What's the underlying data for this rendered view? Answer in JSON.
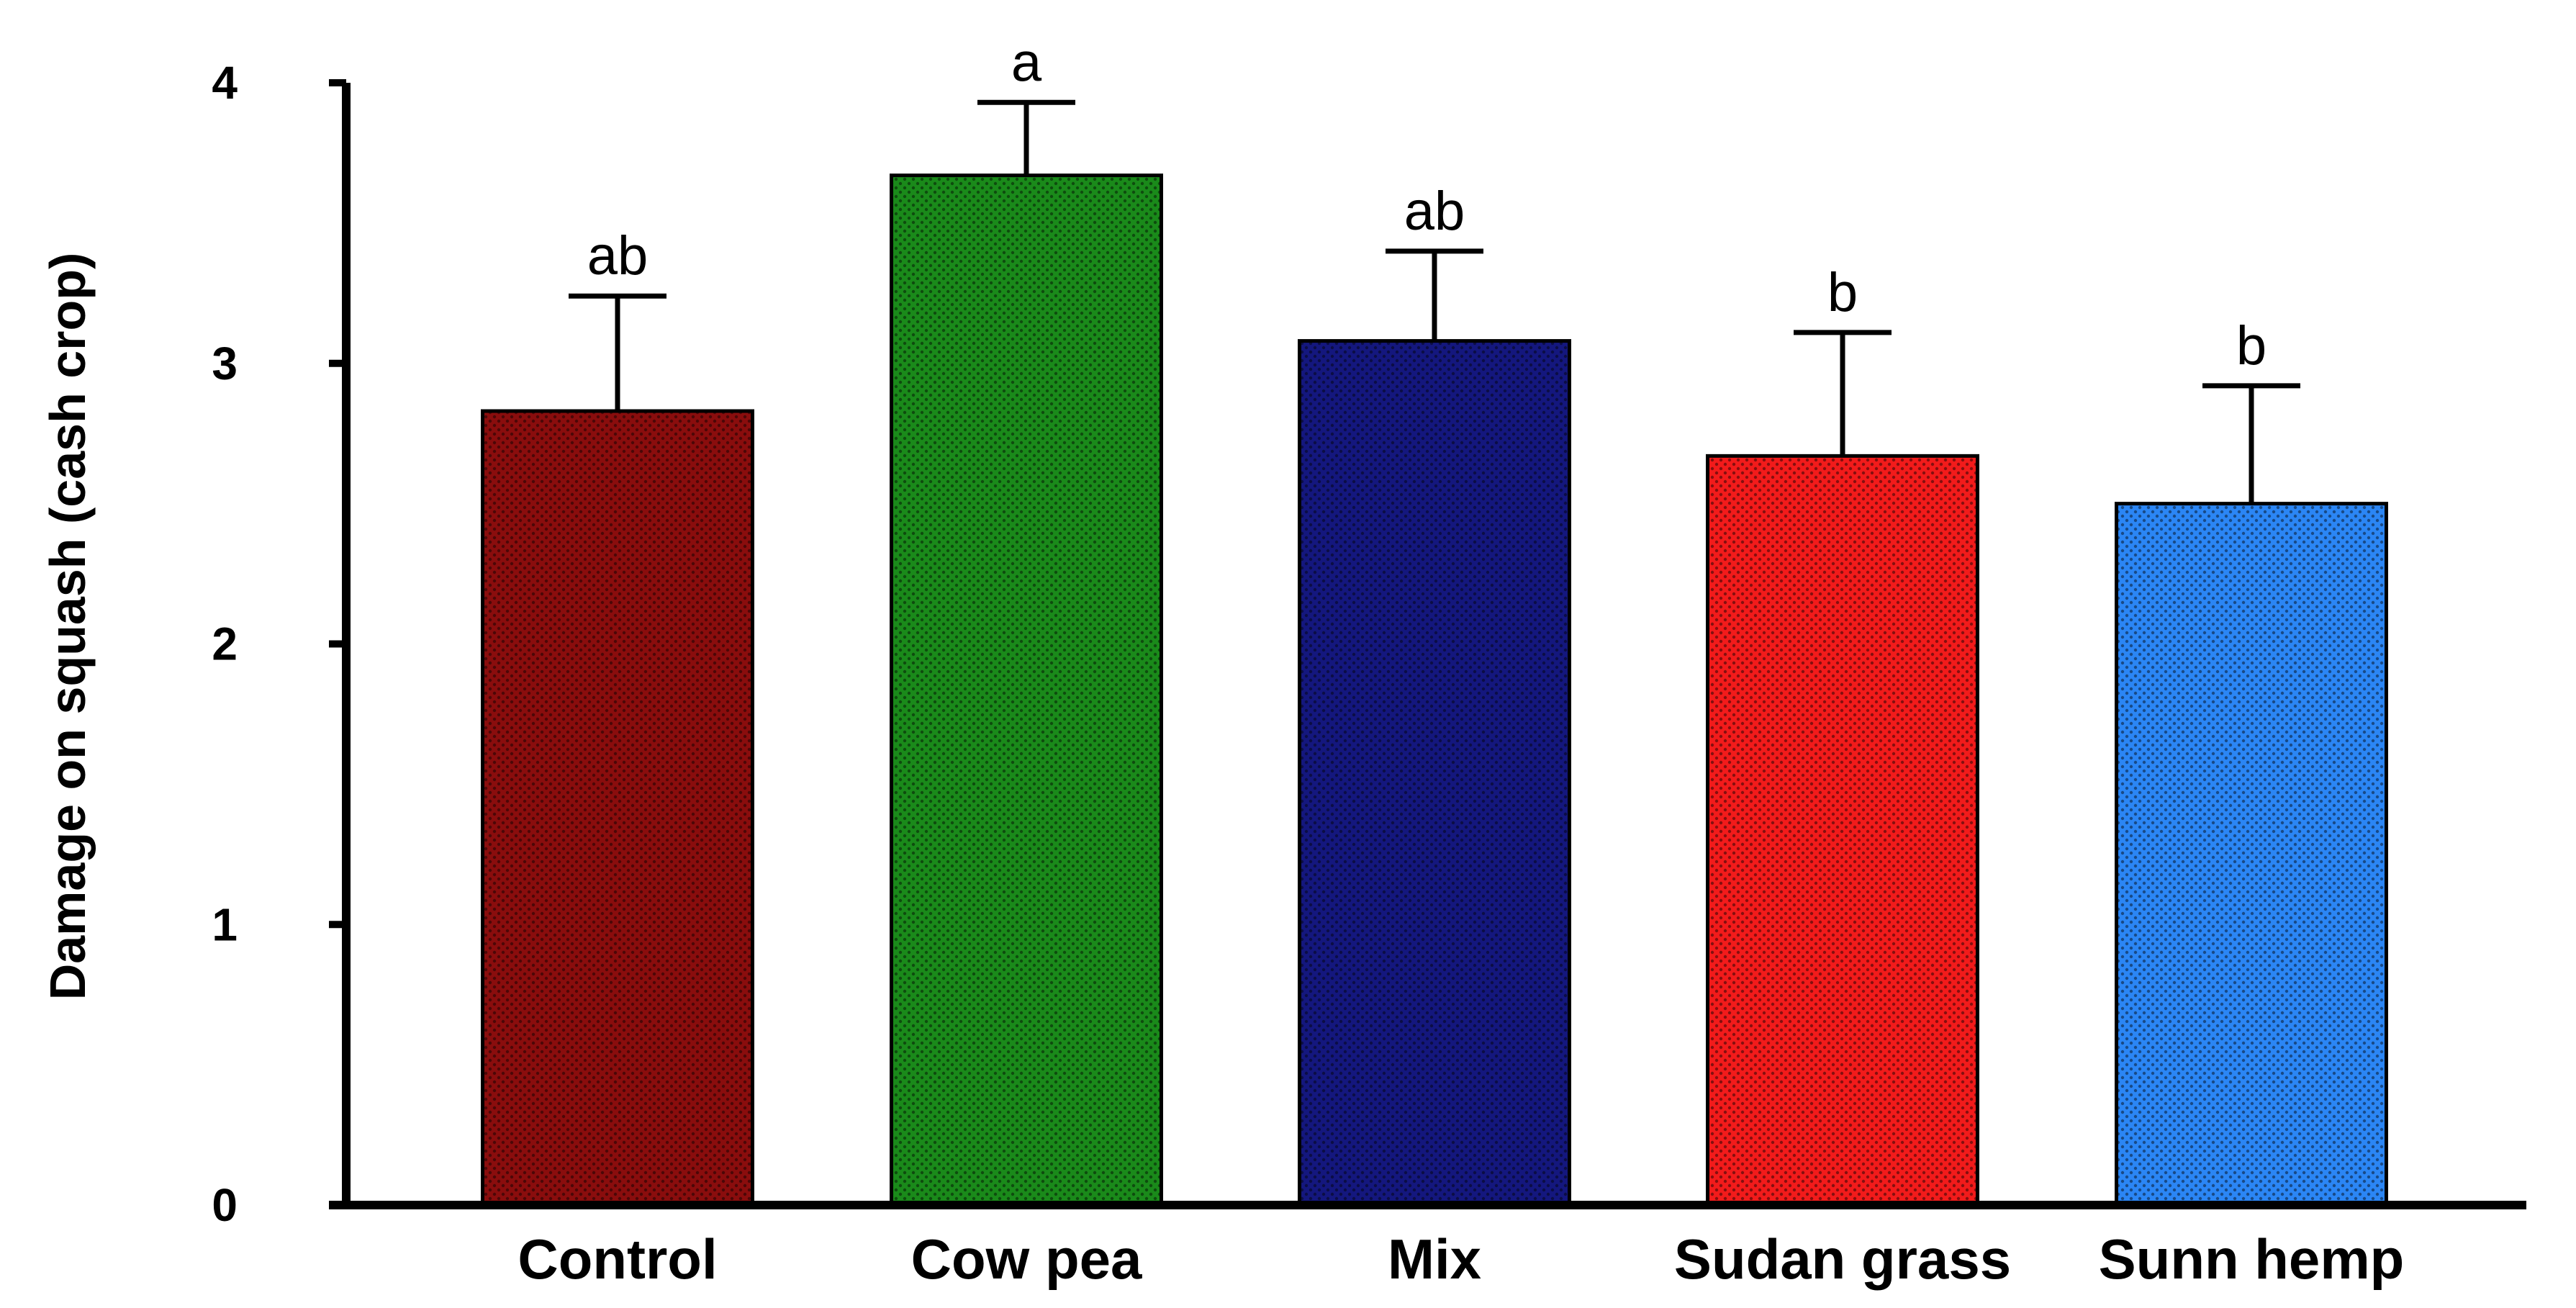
{
  "chart_data": {
    "type": "bar",
    "ylabel": "Damage on squash (cash crop)",
    "xlabel": "",
    "ylim": [
      0,
      4
    ],
    "yticks": [
      0,
      1,
      2,
      3,
      4
    ],
    "categories": [
      "Control",
      "Cow pea",
      "Mix",
      "Sudan grass",
      "Sunn hemp"
    ],
    "values": [
      2.83,
      3.67,
      3.08,
      2.67,
      2.5
    ],
    "errors": [
      0.41,
      0.26,
      0.32,
      0.44,
      0.42
    ],
    "significance": [
      "ab",
      "a",
      "ab",
      "b",
      "b"
    ],
    "colors": [
      "#8a0d0d",
      "#1a8a1a",
      "#14177e",
      "#f21b1b",
      "#2b86f5"
    ],
    "grid": false,
    "legend": "none"
  }
}
